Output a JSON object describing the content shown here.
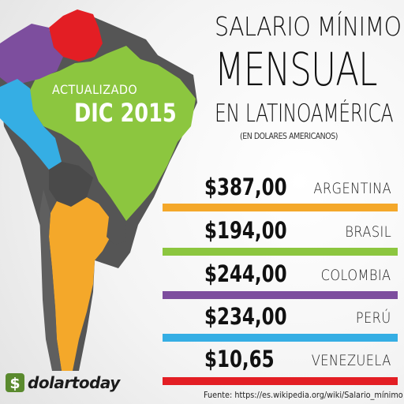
{
  "header": {
    "line1": "SALARIO MÍNIMO",
    "line2": "MENSUAL",
    "line3": "EN LATINOAMÉRICA",
    "subtitle": "(EN DOLARES AMERICANOS)"
  },
  "badge": {
    "label": "ACTUALIZADO",
    "date": "DIC 2015"
  },
  "rows": [
    {
      "amount": "$387,00",
      "country": "ARGENTINA",
      "color": "#f4a82a"
    },
    {
      "amount": "$194,00",
      "country": "BRASIL",
      "color": "#8cc63f"
    },
    {
      "amount": "$244,00",
      "country": "COLOMBIA",
      "color": "#7d4e9e"
    },
    {
      "amount": "$234,00",
      "country": "PERÚ",
      "color": "#35aee4"
    },
    {
      "amount": "$10,65",
      "country": "VENEZUELA",
      "color": "#e31e24"
    }
  ],
  "map_colors": {
    "argentina": "#f4a82a",
    "brasil": "#8cc63f",
    "colombia": "#7d4e9e",
    "peru": "#35aee4",
    "venezuela": "#e31e24",
    "other": "#555555"
  },
  "logo": {
    "text": "dolartoday",
    "icon": "dollar-logo-icon",
    "color": "#5a8a2e"
  },
  "source": "Fuente: https://es.wikipedia.org/wiki/Salario_mínimo"
}
